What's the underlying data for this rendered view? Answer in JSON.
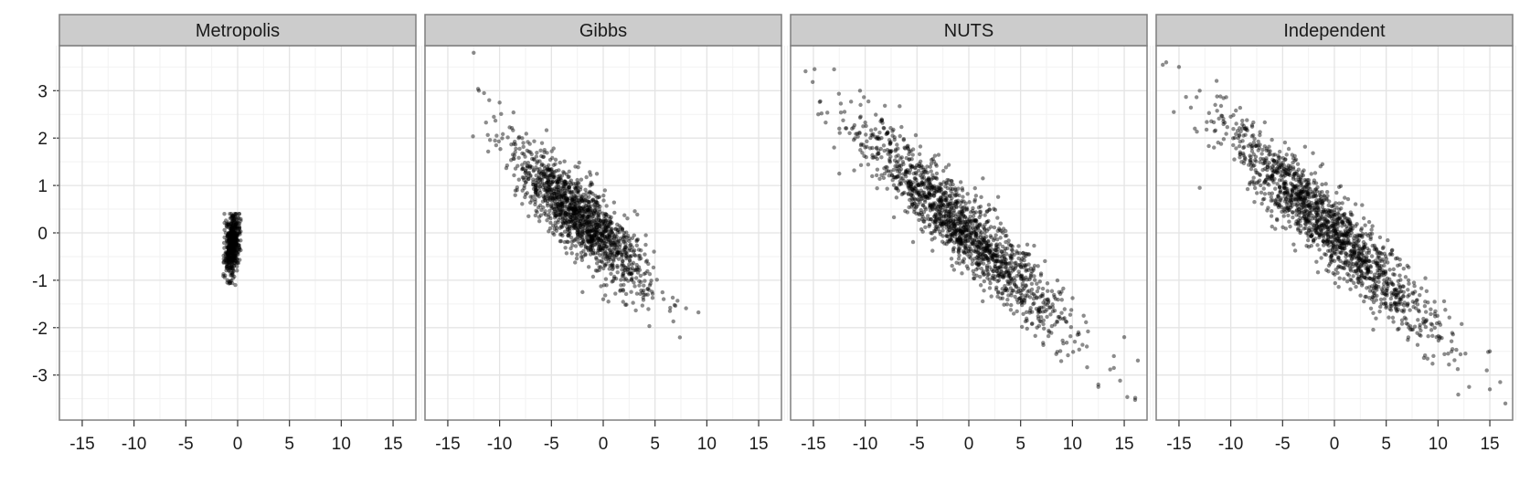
{
  "chart_data": {
    "type": "scatter",
    "layout": "faceted",
    "xlim": [
      -17.2,
      17.2
    ],
    "ylim": [
      -3.95,
      3.95
    ],
    "x_ticks": [
      -15,
      -10,
      -5,
      0,
      5,
      10,
      15
    ],
    "x_tick_labels": [
      "-15",
      "-10",
      "-5",
      "0",
      "5",
      "10",
      "15"
    ],
    "y_ticks": [
      -3,
      -2,
      -1,
      0,
      1,
      2,
      3
    ],
    "y_tick_labels": [
      "-3",
      "-2",
      "-1",
      "0",
      "1",
      "2",
      "3"
    ],
    "grid": true,
    "point_color": "#000000",
    "point_opacity": 0.45,
    "strip_color": "#cccccc",
    "panels": [
      {
        "name": "Metropolis",
        "n_points": 500,
        "distribution": {
          "mean_x": -0.5,
          "mean_y": -0.25,
          "sd_x": 0.35,
          "sd_y": 0.33,
          "corr": 0.3
        },
        "clip_x": [
          -1.5,
          0.3
        ],
        "clip_y": [
          -1.1,
          0.4
        ],
        "points": [
          [
            -1.0,
            -1.05
          ],
          [
            -0.3,
            0.35
          ],
          [
            0.1,
            0.2
          ],
          [
            -1.2,
            -0.9
          ],
          [
            -0.8,
            -0.6
          ]
        ]
      },
      {
        "name": "Gibbs",
        "n_points": 1400,
        "distribution": {
          "mean_x": -2.0,
          "mean_y": 0.3,
          "sd_x": 3.2,
          "sd_y": 0.75,
          "corr": -0.85
        },
        "points": [
          [
            -12.5,
            3.8
          ],
          [
            -12.0,
            3.0
          ],
          [
            -11.5,
            2.95
          ],
          [
            -10.0,
            2.75
          ],
          [
            -11.0,
            2.8
          ],
          [
            0.5,
            -1.45
          ],
          [
            0.0,
            -1.4
          ],
          [
            -2.0,
            -1.25
          ],
          [
            3.5,
            -0.55
          ],
          [
            2.8,
            -0.3
          ]
        ]
      },
      {
        "name": "NUTS",
        "n_points": 1500,
        "distribution": {
          "mean_x": -0.5,
          "mean_y": 0.1,
          "sd_x": 5.0,
          "sd_y": 1.1,
          "corr": -0.93
        },
        "points": [
          [
            -13.0,
            3.45
          ],
          [
            -10.5,
            3.0
          ],
          [
            -12.5,
            2.2
          ],
          [
            -12.5,
            1.25
          ],
          [
            -13.0,
            1.8
          ],
          [
            12.5,
            -3.25
          ],
          [
            12.5,
            -3.2
          ],
          [
            14.0,
            -2.85
          ],
          [
            15.0,
            -2.2
          ],
          [
            14.0,
            -2.6
          ]
        ]
      },
      {
        "name": "Independent",
        "n_points": 1500,
        "distribution": {
          "mean_x": -0.5,
          "mean_y": 0.1,
          "sd_x": 5.0,
          "sd_y": 1.1,
          "corr": -0.93
        },
        "points": [
          [
            -15.0,
            3.5
          ],
          [
            -15.5,
            2.55
          ],
          [
            -13.0,
            3.0
          ],
          [
            -13.0,
            0.95
          ],
          [
            -11.5,
            2.7
          ],
          [
            16.5,
            -3.6
          ],
          [
            15.0,
            -3.3
          ],
          [
            16.0,
            -3.15
          ],
          [
            13.0,
            -3.25
          ],
          [
            15.0,
            -2.5
          ]
        ]
      }
    ]
  }
}
